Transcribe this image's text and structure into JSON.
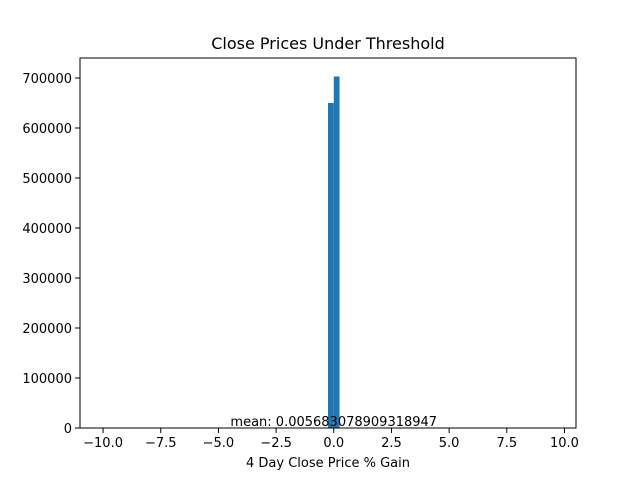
{
  "chart_data": {
    "type": "bar",
    "title": "Close Prices Under Threshold",
    "xlabel": "4 Day Close Price % Gain",
    "ylabel": "",
    "xlim": [
      -11,
      10.5
    ],
    "ylim": [
      0,
      740000
    ],
    "x_ticks": [
      -10.0,
      -7.5,
      -5.0,
      -2.5,
      0.0,
      2.5,
      5.0,
      7.5,
      10.0
    ],
    "x_tick_labels": [
      "−10.0",
      "−7.5",
      "−5.0",
      "−2.5",
      "0.0",
      "2.5",
      "5.0",
      "7.5",
      "10.0"
    ],
    "y_ticks": [
      0,
      100000,
      200000,
      300000,
      400000,
      500000,
      600000,
      700000
    ],
    "y_tick_labels": [
      "0",
      "100000",
      "200000",
      "300000",
      "400000",
      "500000",
      "600000",
      "700000"
    ],
    "bin_width": 0.25,
    "bars": [
      {
        "x": -0.25,
        "value": 650000
      },
      {
        "x": 0.0,
        "value": 703000
      }
    ],
    "bar_color": "#1f77b4",
    "grid": false,
    "annotation": {
      "text": "mean: 0.005683078909318947",
      "x": 0.0,
      "y": 0
    }
  }
}
